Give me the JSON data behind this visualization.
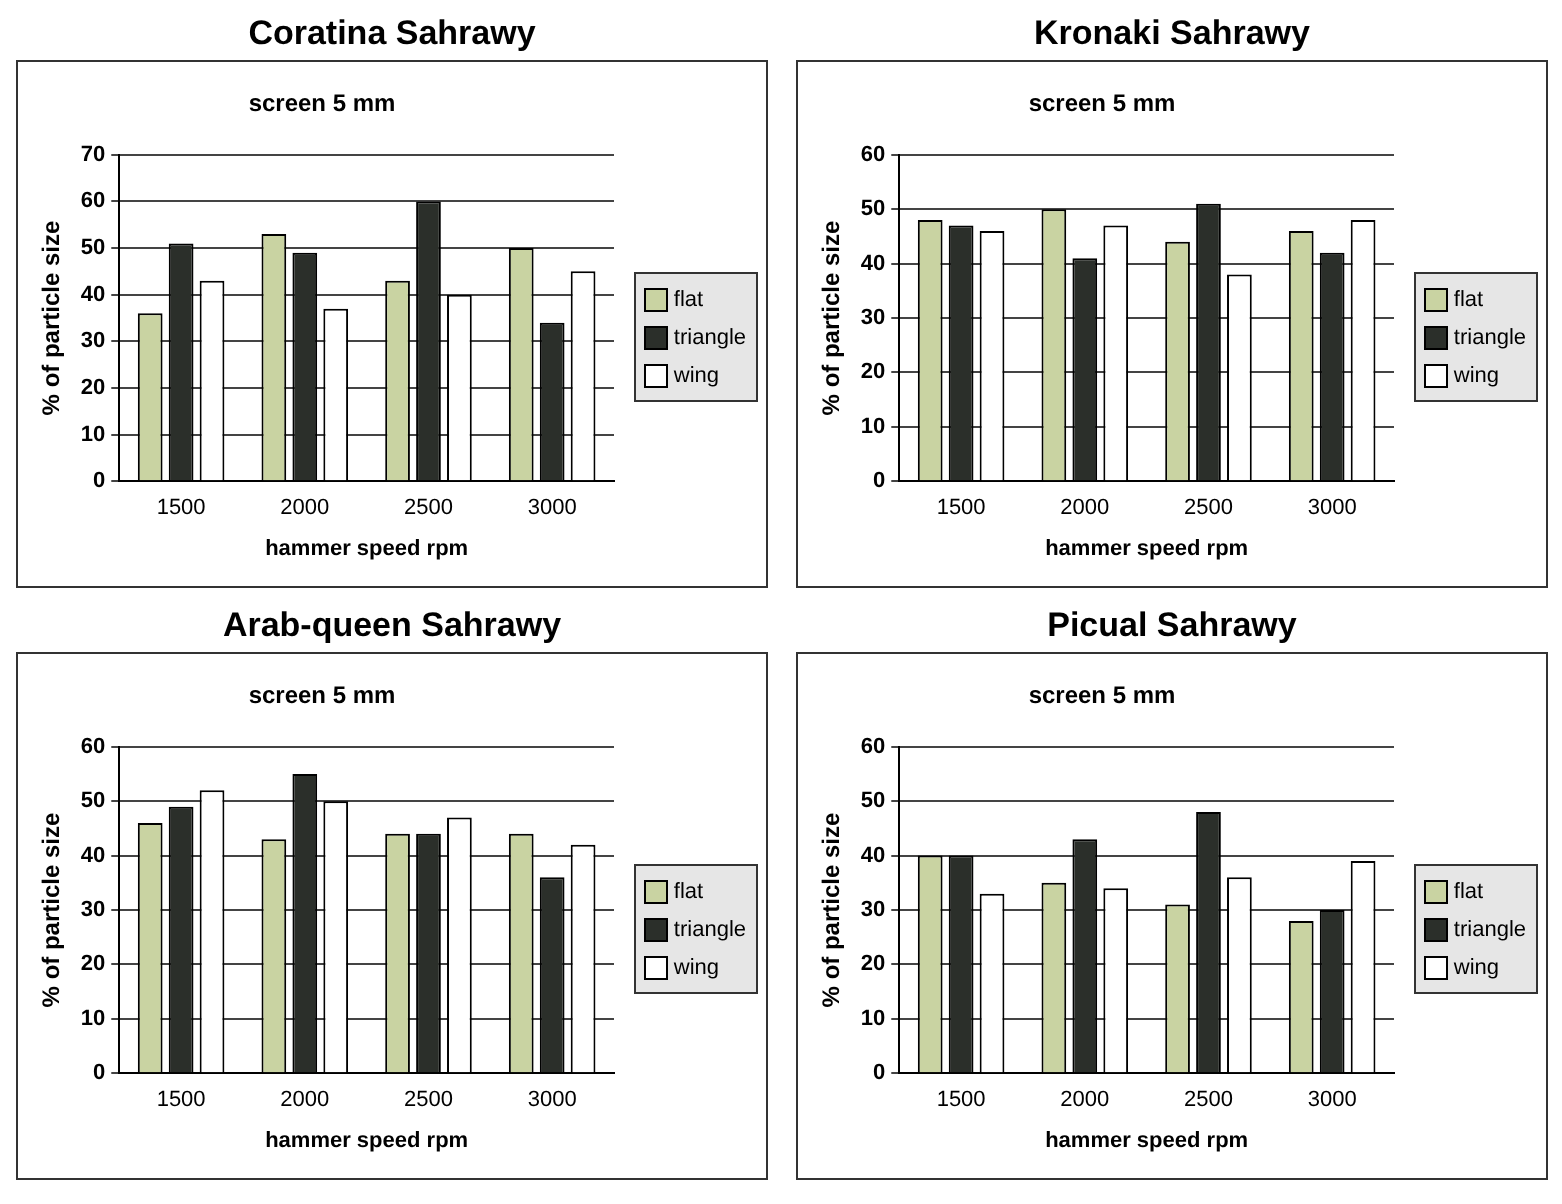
{
  "chart_data": [
    {
      "type": "bar",
      "title": "Coratina Sahrawy",
      "subtitle": "screen 5 mm",
      "xlabel": "hammer speed rpm",
      "ylabel": "% of particle size",
      "categories": [
        "1500",
        "2000",
        "2500",
        "3000"
      ],
      "series": [
        {
          "name": "flat",
          "color": "#c9d3a2",
          "values": [
            36,
            53,
            43,
            50
          ]
        },
        {
          "name": "triangle",
          "color": "#2b2f2a",
          "values": [
            51,
            49,
            60,
            34
          ]
        },
        {
          "name": "wing",
          "color": "#ffffff",
          "values": [
            43,
            37,
            40,
            45
          ]
        }
      ],
      "ylim": [
        0,
        70
      ],
      "yticks": [
        0,
        10,
        20,
        30,
        40,
        50,
        60,
        70
      ],
      "grid": "y",
      "legend": "right"
    },
    {
      "type": "bar",
      "title": "Kronaki Sahrawy",
      "subtitle": "screen 5 mm",
      "xlabel": "hammer speed rpm",
      "ylabel": "% of particle size",
      "categories": [
        "1500",
        "2000",
        "2500",
        "3000"
      ],
      "series": [
        {
          "name": "flat",
          "color": "#c9d3a2",
          "values": [
            48,
            50,
            44,
            46
          ]
        },
        {
          "name": "triangle",
          "color": "#2b2f2a",
          "values": [
            47,
            41,
            51,
            42
          ]
        },
        {
          "name": "wing",
          "color": "#ffffff",
          "values": [
            46,
            47,
            38,
            48
          ]
        }
      ],
      "ylim": [
        0,
        60
      ],
      "yticks": [
        0,
        10,
        20,
        30,
        40,
        50,
        60
      ],
      "grid": "y",
      "legend": "right"
    },
    {
      "type": "bar",
      "title": "Arab-queen Sahrawy",
      "subtitle": "screen 5 mm",
      "xlabel": "hammer speed rpm",
      "ylabel": "% of particle size",
      "categories": [
        "1500",
        "2000",
        "2500",
        "3000"
      ],
      "series": [
        {
          "name": "flat",
          "color": "#c9d3a2",
          "values": [
            46,
            43,
            44,
            44
          ]
        },
        {
          "name": "triangle",
          "color": "#2b2f2a",
          "values": [
            49,
            55,
            44,
            36
          ]
        },
        {
          "name": "wing",
          "color": "#ffffff",
          "values": [
            52,
            50,
            47,
            42
          ]
        }
      ],
      "ylim": [
        0,
        60
      ],
      "yticks": [
        0,
        10,
        20,
        30,
        40,
        50,
        60
      ],
      "grid": "y",
      "legend": "right"
    },
    {
      "type": "bar",
      "title": "Picual Sahrawy",
      "subtitle": "screen 5 mm",
      "xlabel": "hammer speed rpm",
      "ylabel": "% of particle size",
      "categories": [
        "1500",
        "2000",
        "2500",
        "3000"
      ],
      "series": [
        {
          "name": "flat",
          "color": "#c9d3a2",
          "values": [
            40,
            35,
            31,
            28
          ]
        },
        {
          "name": "triangle",
          "color": "#2b2f2a",
          "values": [
            40,
            43,
            48,
            30
          ]
        },
        {
          "name": "wing",
          "color": "#ffffff",
          "values": [
            33,
            34,
            36,
            39
          ]
        }
      ],
      "ylim": [
        0,
        60
      ],
      "yticks": [
        0,
        10,
        20,
        30,
        40,
        50,
        60
      ],
      "grid": "y",
      "legend": "right"
    }
  ]
}
